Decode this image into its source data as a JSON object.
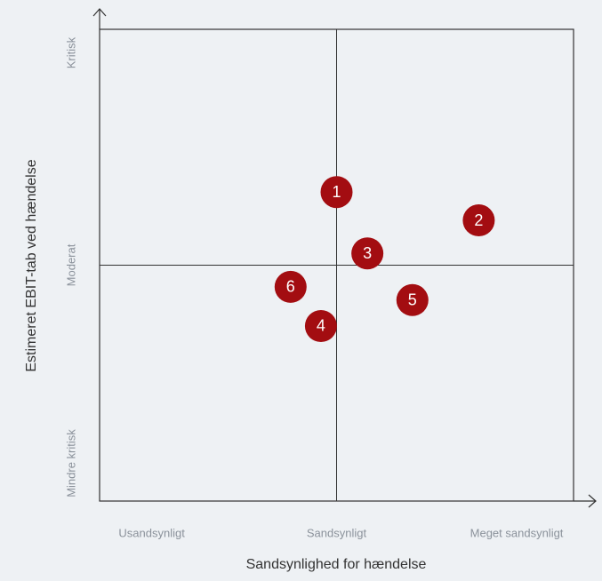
{
  "chart_data": {
    "type": "scatter",
    "xlabel": "Sandsynlighed for hændelse",
    "ylabel": "Estimeret EBIT-tab ved hændelse",
    "xlim": [
      0,
      100
    ],
    "ylim": [
      0,
      100
    ],
    "xticks": [
      {
        "value": 11,
        "label": "Usandsynligt"
      },
      {
        "value": 50,
        "label": "Sandsynligt"
      },
      {
        "value": 88,
        "label": "Meget sandsynligt"
      }
    ],
    "yticks": [
      {
        "value": 8,
        "label": "Mindre kritisk"
      },
      {
        "value": 50,
        "label": "Moderat"
      },
      {
        "value": 95,
        "label": "Kritisk"
      }
    ],
    "x_divider": 50,
    "y_divider": 50,
    "series": [
      {
        "color": "#a30d11",
        "x": [
          50,
          80,
          56.5,
          46.7,
          66,
          40.3
        ],
        "values": [
          65.5,
          59.5,
          52.5,
          37.1,
          42.6,
          45.4
        ],
        "point_labels": [
          "1",
          "2",
          "3",
          "4",
          "5",
          "6"
        ]
      }
    ]
  }
}
